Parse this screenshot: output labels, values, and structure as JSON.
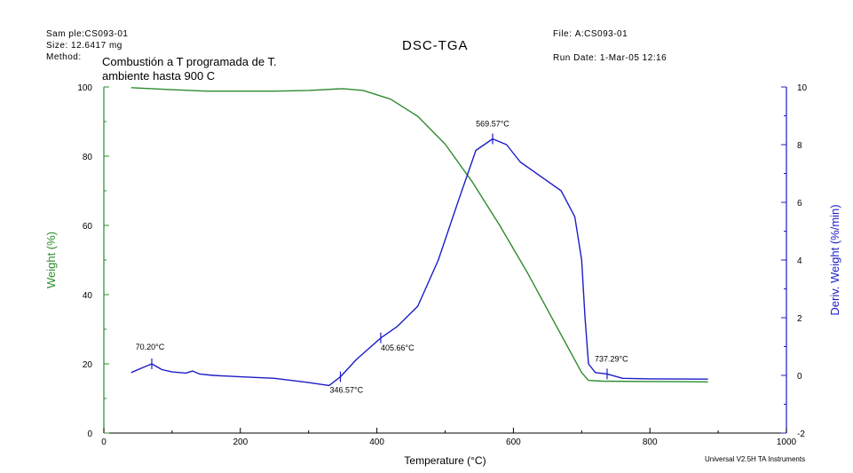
{
  "header": {
    "sample_label": "Sam ple:",
    "sample_value": "CS093-01",
    "size_label": "Size:",
    "size_value": "12.6417 mg",
    "method_label": "Method:",
    "method_line1": "Combustión a T programada de T.",
    "method_line2": "ambiente hasta 900 C",
    "title": "DSC-TGA",
    "file_label": "File:",
    "file_value": "A:CS093-01",
    "run_date_label": "Run Date:",
    "run_date_value": "1-Mar-05 12:16"
  },
  "footer": {
    "instrument": "Universal V2.5H TA Instruments"
  },
  "chart_data": {
    "type": "line",
    "title": "DSC-TGA",
    "xlabel": "Temperature (°C)",
    "ylabel_left": "Weight (%)",
    "ylabel_right": "Deriv. Weight (%/min)",
    "xlim": [
      0,
      1000
    ],
    "ylim_left": [
      0,
      100
    ],
    "ylim_right": [
      -2,
      10
    ],
    "x_ticks": [
      "0",
      "200",
      "400",
      "600",
      "800",
      "1000"
    ],
    "y_left_ticks": [
      "0",
      "20",
      "40",
      "60",
      "80",
      "100"
    ],
    "y_right_ticks": [
      "-2",
      "0",
      "2",
      "4",
      "6",
      "8",
      "10"
    ],
    "grid": false,
    "colors": {
      "weight": "#2e8b2e",
      "derivative": "#1c1cc8",
      "axis_left": "#2e8b2e",
      "axis_right": "#1c1cc8"
    },
    "series": [
      {
        "axis": "left",
        "x": [
          40,
          100,
          150,
          200,
          250,
          300,
          350,
          380,
          420,
          460,
          500,
          540,
          580,
          620,
          660,
          700,
          710,
          730,
          800,
          885
        ],
        "values": [
          99.8,
          99.2,
          98.8,
          98.8,
          98.8,
          99.0,
          99.5,
          99.0,
          96.5,
          91.5,
          83.5,
          72.5,
          60.0,
          46.5,
          32.0,
          17.5,
          15.2,
          15.0,
          14.9,
          14.8
        ]
      },
      {
        "axis": "right",
        "x": [
          40,
          55,
          70.2,
          85,
          100,
          120,
          130,
          140,
          160,
          200,
          250,
          300,
          330,
          346.57,
          370,
          405.66,
          430,
          460,
          490,
          520,
          545,
          569.57,
          590,
          610,
          640,
          670,
          690,
          700,
          705,
          710,
          720,
          737.29,
          760,
          800,
          885
        ],
        "values": [
          0.1,
          0.25,
          0.4,
          0.2,
          0.12,
          0.08,
          0.15,
          0.05,
          0.0,
          -0.05,
          -0.1,
          -0.25,
          -0.35,
          -0.05,
          0.55,
          1.3,
          1.7,
          2.4,
          4.0,
          6.1,
          7.8,
          8.2,
          8.0,
          7.4,
          6.9,
          6.4,
          5.5,
          4.0,
          2.0,
          0.4,
          0.1,
          0.05,
          -0.1,
          -0.12,
          -0.13
        ]
      }
    ],
    "annotations": [
      {
        "series": 1,
        "x": 70.2,
        "y": 0.4,
        "label": "70.20°C"
      },
      {
        "series": 1,
        "x": 346.57,
        "y": -0.05,
        "label": "346.57°C"
      },
      {
        "series": 1,
        "x": 405.66,
        "y": 1.3,
        "label": "405.66°C"
      },
      {
        "series": 1,
        "x": 569.57,
        "y": 8.2,
        "label": "569.57°C"
      },
      {
        "series": 1,
        "x": 737.29,
        "y": 0.05,
        "label": "737.29°C"
      }
    ]
  }
}
